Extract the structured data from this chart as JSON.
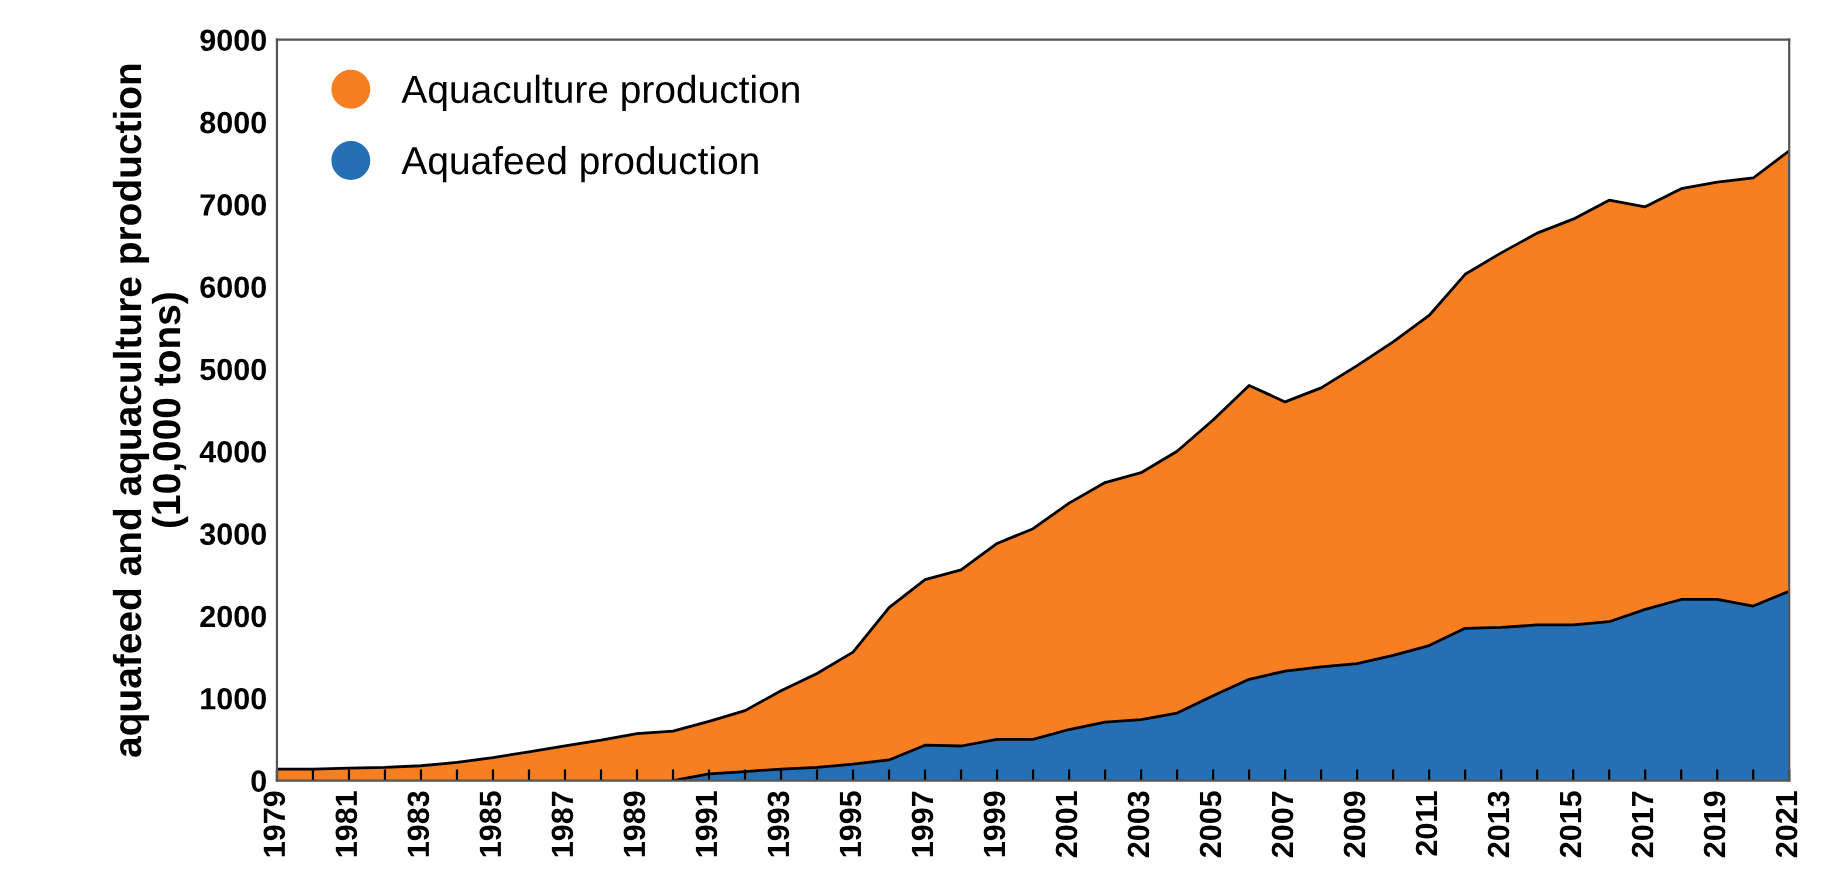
{
  "chart_data": {
    "type": "area",
    "ylabel": "aquafeed and aquaculture production\n(10,000 tons)",
    "x": [
      1979,
      1980,
      1981,
      1982,
      1983,
      1984,
      1985,
      1986,
      1987,
      1988,
      1989,
      1990,
      1991,
      1992,
      1993,
      1994,
      1995,
      1996,
      1997,
      1998,
      1999,
      2000,
      2001,
      2002,
      2003,
      2004,
      2005,
      2006,
      2007,
      2008,
      2009,
      2010,
      2011,
      2012,
      2013,
      2014,
      2015,
      2016,
      2017,
      2018,
      2019,
      2020,
      2021
    ],
    "series": [
      {
        "name": "Aquaculture production",
        "color": "#f77f22",
        "values": [
          140,
          140,
          150,
          160,
          180,
          220,
          280,
          350,
          420,
          490,
          570,
          600,
          720,
          850,
          1090,
          1300,
          1560,
          2100,
          2440,
          2560,
          2880,
          3060,
          3370,
          3620,
          3740,
          4000,
          4380,
          4800,
          4600,
          4770,
          5040,
          5330,
          5650,
          6150,
          6410,
          6650,
          6820,
          7050,
          6970,
          7190,
          7270,
          7320,
          7650
        ]
      },
      {
        "name": "Aquafeed production",
        "color": "#2570b4",
        "values": [
          null,
          null,
          null,
          null,
          null,
          null,
          null,
          null,
          null,
          null,
          null,
          0,
          80,
          110,
          140,
          160,
          200,
          250,
          430,
          420,
          500,
          500,
          620,
          710,
          740,
          820,
          1030,
          1230,
          1330,
          1380,
          1420,
          1520,
          1640,
          1850,
          1860,
          1890,
          1890,
          1930,
          2080,
          2200,
          2200,
          2120,
          2300
        ]
      }
    ],
    "xlim": [
      1979,
      2021
    ],
    "xticks": [
      1979,
      {
        "value": 1980,
        "label": null
      },
      1981,
      {
        "value": 1982,
        "label": null
      },
      1983,
      {
        "value": 1984,
        "label": null
      },
      1985,
      {
        "value": 1986,
        "label": null
      },
      1987,
      {
        "value": 1988,
        "label": null
      },
      1989,
      {
        "value": 1990,
        "label": null
      },
      1991,
      {
        "value": 1992,
        "label": null
      },
      1993,
      {
        "value": 1994,
        "label": null
      },
      1995,
      {
        "value": 1996,
        "label": null
      },
      1997,
      {
        "value": 1998,
        "label": null
      },
      1999,
      {
        "value": 2000,
        "label": null
      },
      2001,
      {
        "value": 2002,
        "label": null
      },
      2003,
      {
        "value": 2004,
        "label": null
      },
      2005,
      {
        "value": 2006,
        "label": null
      },
      2007,
      {
        "value": 2008,
        "label": null
      },
      2009,
      {
        "value": 2010,
        "label": null
      },
      2011,
      {
        "value": 2012,
        "label": null
      },
      2013,
      {
        "value": 2014,
        "label": null
      },
      2015,
      {
        "value": 2016,
        "label": null
      },
      2017,
      {
        "value": 2018,
        "label": null
      },
      2019,
      {
        "value": 2020,
        "label": null
      },
      2021
    ],
    "ylim": [
      0,
      9000
    ],
    "yticks": [
      0,
      1000,
      2000,
      3000,
      4000,
      5000,
      6000,
      7000,
      8000,
      9000
    ],
    "grid": false,
    "legend": "top left"
  }
}
